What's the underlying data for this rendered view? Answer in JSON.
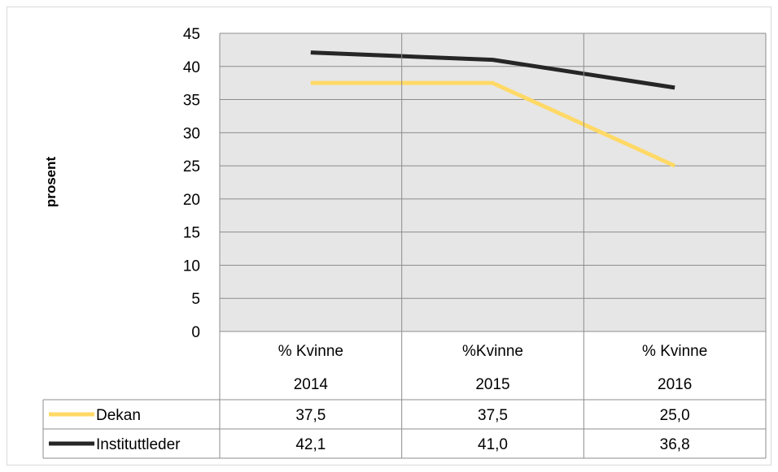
{
  "chart_data": {
    "type": "line",
    "title": "",
    "ylabel": "prosent",
    "xlabel": "",
    "ylim": [
      0,
      45
    ],
    "yticks": [
      0,
      5,
      10,
      15,
      20,
      25,
      30,
      35,
      40,
      45
    ],
    "grid": true,
    "categories": [
      {
        "line1": "% Kvinne",
        "line2": "2014"
      },
      {
        "line1": "%Kvinne",
        "line2": "2015"
      },
      {
        "line1": "% Kvinne",
        "line2": "2016"
      }
    ],
    "series": [
      {
        "name": "Dekan",
        "color": "#ffd966",
        "values": [
          37.5,
          37.5,
          25.0
        ],
        "labels": [
          "37,5",
          "37,5",
          "25,0"
        ]
      },
      {
        "name": "Instituttleder",
        "color": "#262626",
        "values": [
          42.1,
          41.0,
          36.8
        ],
        "labels": [
          "42,1",
          "41,0",
          "36,8"
        ]
      }
    ],
    "legend_placement": "data-table"
  }
}
